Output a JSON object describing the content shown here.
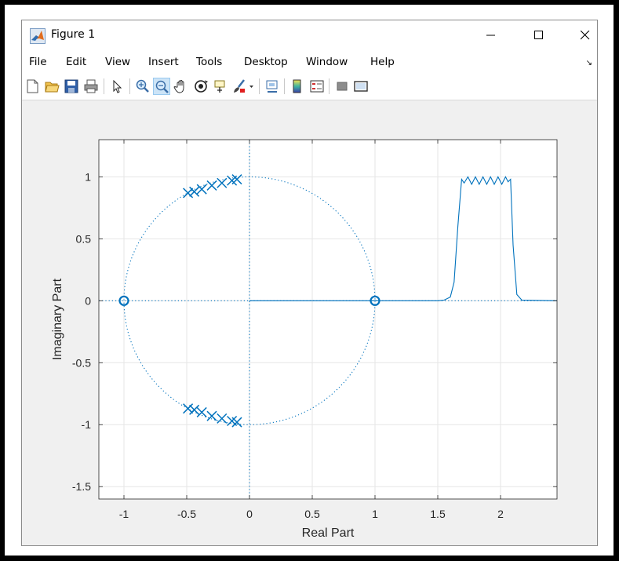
{
  "window": {
    "title": "Figure 1"
  },
  "menu": {
    "items": [
      "File",
      "Edit",
      "View",
      "Insert",
      "Tools",
      "Desktop",
      "Window",
      "Help"
    ]
  },
  "toolbar": {
    "buttons": [
      "new-figure-icon",
      "open-file-icon",
      "save-icon",
      "print-icon",
      "edit-plot-arrow-icon",
      "zoom-in-icon",
      "zoom-out-icon",
      "pan-hand-icon",
      "rotate-3d-icon",
      "data-cursor-icon",
      "brush-icon",
      "brush-dropdown-icon",
      "link-plot-icon",
      "colorbar-icon",
      "legend-icon",
      "hide-plot-tools-icon",
      "show-plot-tools-icon"
    ],
    "active": "zoom-out-icon"
  },
  "colors": {
    "series": "#0072bd",
    "grid": "#e6e6e6",
    "axes_bg": "#ffffff",
    "figure_bg": "#f0f0f0"
  },
  "chart_data": {
    "type": "scatter",
    "title": "",
    "xlabel": "Real Part",
    "ylabel": "Imaginary Part",
    "xlim": [
      -1.2,
      2.45
    ],
    "ylim": [
      -1.6,
      1.3
    ],
    "xticks": [
      -1,
      -0.5,
      0,
      0.5,
      1,
      1.5,
      2
    ],
    "xtick_labels": [
      "-1",
      "-0.5",
      "0",
      "0.5",
      "1",
      "1.5",
      "2"
    ],
    "yticks": [
      -1.5,
      -1,
      -0.5,
      0,
      0.5,
      1
    ],
    "ytick_labels": [
      "-1.5",
      "-1",
      "-0.5",
      "0",
      "0.5",
      "1"
    ],
    "grid": true,
    "unit_circle": true,
    "zeros": [
      [
        -1,
        0
      ],
      [
        1,
        0
      ]
    ],
    "poles": [
      [
        -0.49,
        0.87
      ],
      [
        -0.44,
        0.88
      ],
      [
        -0.38,
        0.9
      ],
      [
        -0.3,
        0.93
      ],
      [
        -0.22,
        0.95
      ],
      [
        -0.14,
        0.97
      ],
      [
        -0.1,
        0.98
      ],
      [
        -0.49,
        -0.87
      ],
      [
        -0.44,
        -0.88
      ],
      [
        -0.38,
        -0.9
      ],
      [
        -0.3,
        -0.93
      ],
      [
        -0.22,
        -0.95
      ],
      [
        -0.14,
        -0.97
      ],
      [
        -0.1,
        -0.98
      ]
    ],
    "response_line": {
      "x": [
        0,
        1,
        1.5,
        1.55,
        1.6,
        1.63,
        1.66,
        1.69,
        1.71,
        1.74,
        1.77,
        1.8,
        1.83,
        1.86,
        1.89,
        1.92,
        1.95,
        1.98,
        2.01,
        2.04,
        2.06,
        2.08,
        2.1,
        2.13,
        2.17,
        2.45
      ],
      "y": [
        0,
        0,
        0,
        0.005,
        0.03,
        0.15,
        0.6,
        0.98,
        0.95,
        1.0,
        0.94,
        1.0,
        0.94,
        1.0,
        0.94,
        1.0,
        0.94,
        1.0,
        0.94,
        1.0,
        0.96,
        0.98,
        0.45,
        0.05,
        0.005,
        0
      ]
    }
  }
}
